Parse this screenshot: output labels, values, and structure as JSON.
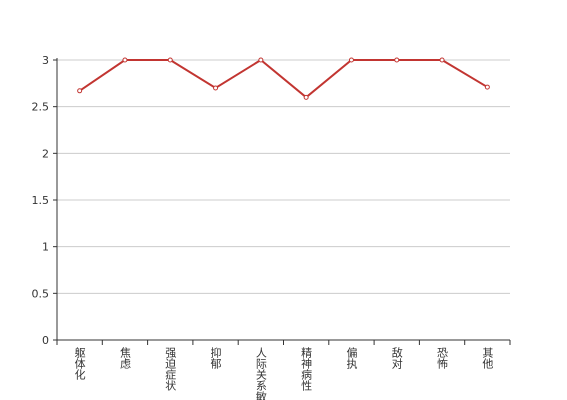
{
  "chart_data": {
    "type": "line",
    "categories": [
      "躯体化",
      "焦虑",
      "强迫症状",
      "抑郁",
      "人际关系敏感",
      "精神病性",
      "偏执",
      "敌对",
      "恐怖",
      "其他"
    ],
    "values": [
      2.67,
      3,
      3,
      2.7,
      3,
      2.6,
      3,
      3,
      3,
      2.71
    ],
    "color": "#c23531",
    "ylim": [
      0,
      3
    ],
    "yticks": [
      0,
      0.5,
      1,
      1.5,
      2,
      2.5,
      3
    ],
    "grid": true
  }
}
